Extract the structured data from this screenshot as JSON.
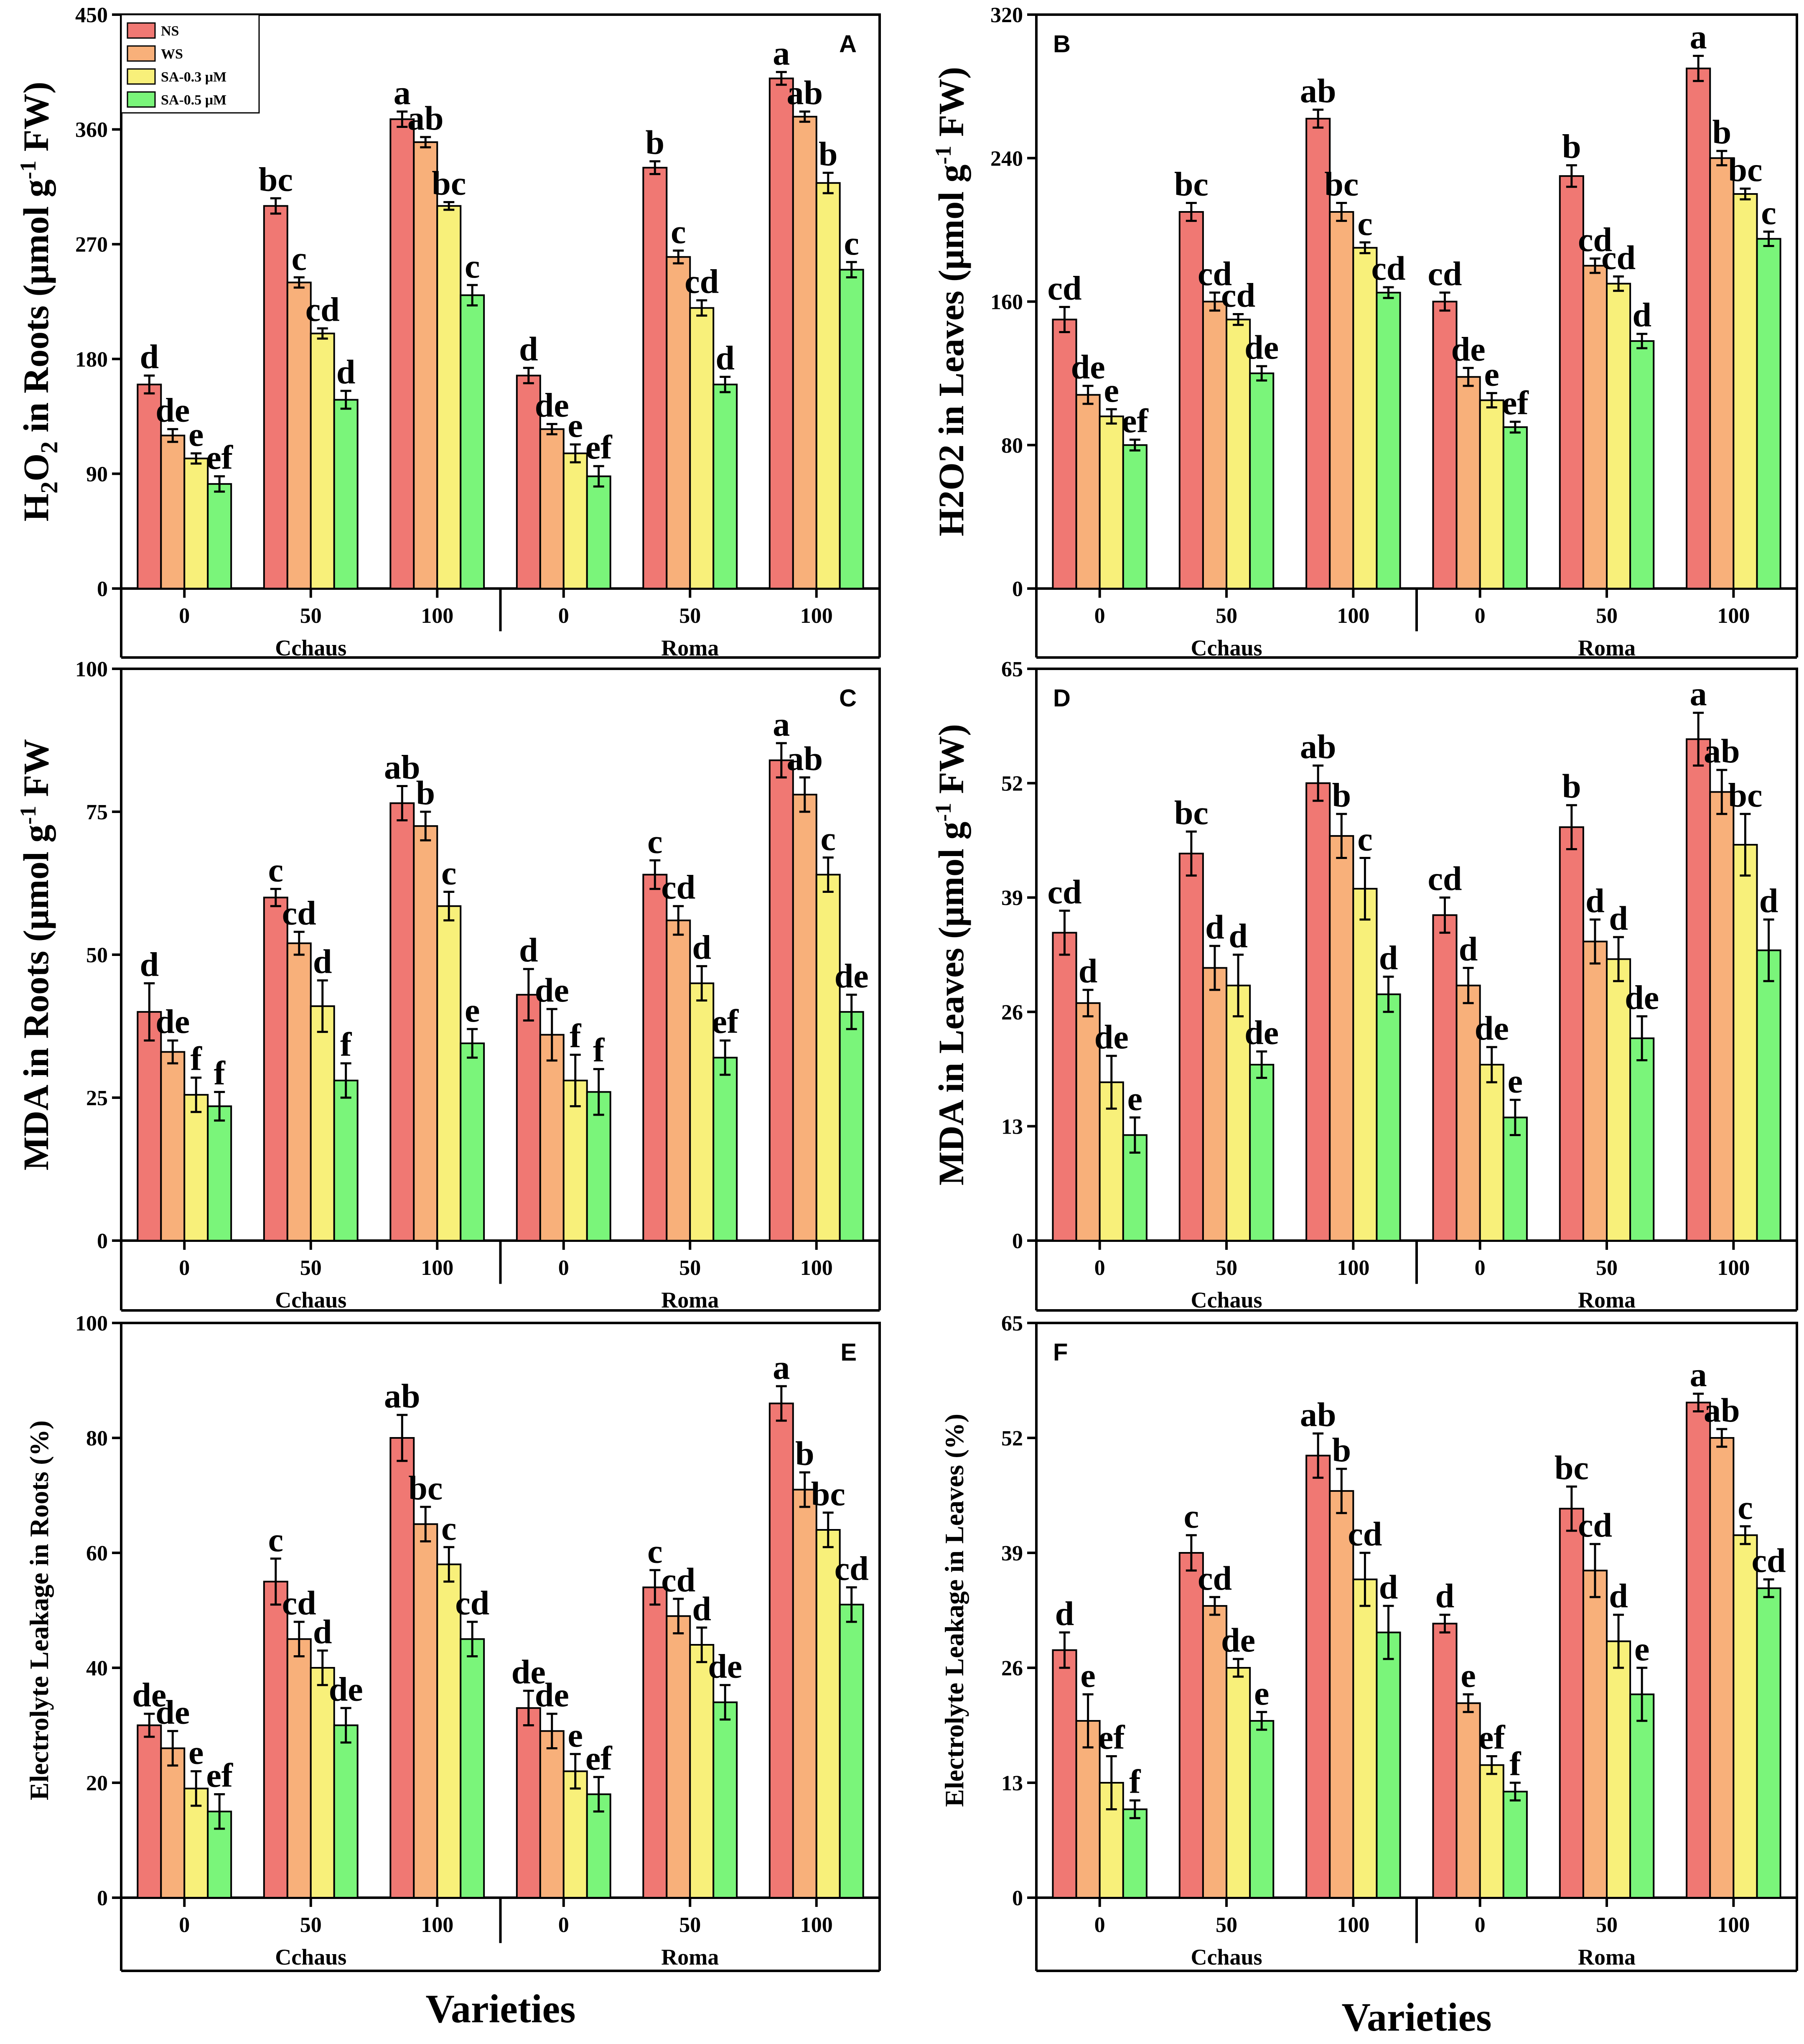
{
  "colors": {
    "NS": "#f07873",
    "WS": "#f8b07a",
    "SA-0.3 μM": "#f8f07a",
    "SA-0.5 μM": "#7af57a"
  },
  "legend": [
    "NS",
    "WS",
    "SA-0.3 μM",
    "SA-0.5 μM"
  ],
  "x_axis_title": "Varieties",
  "chart_data": [
    {
      "type": "bar",
      "panel": "A",
      "ylabel_parts": [
        "H",
        "2",
        "O",
        "2",
        " in Roots (μmol g",
        "-1",
        " FW)"
      ],
      "ylim": [
        0,
        450
      ],
      "yticks": [
        "0",
        "90",
        "180",
        "270",
        "360",
        "450"
      ],
      "categories": [
        "0",
        "50",
        "100",
        "0",
        "50",
        "100"
      ],
      "groups": [
        "Cchaus",
        "Roma"
      ],
      "series": [
        {
          "name": "NS",
          "values": [
            160,
            300,
            368,
            167,
            330,
            400
          ],
          "errors": [
            7,
            6,
            6,
            6,
            5,
            5
          ],
          "letters": [
            "d",
            "bc",
            "a",
            "d",
            "b",
            "a"
          ]
        },
        {
          "name": "WS",
          "values": [
            120,
            240,
            350,
            125,
            260,
            370
          ],
          "errors": [
            5,
            4,
            4,
            4,
            5,
            4
          ],
          "letters": [
            "de",
            "c",
            "ab",
            "de",
            "c",
            "ab"
          ]
        },
        {
          "name": "SA-0.3 μM",
          "values": [
            102,
            200,
            300,
            106,
            220,
            318
          ],
          "errors": [
            4,
            4,
            3,
            7,
            6,
            8
          ],
          "letters": [
            "e",
            "cd",
            "bc",
            "e",
            "cd",
            "b"
          ]
        },
        {
          "name": "SA-0.5 μM",
          "values": [
            82,
            148,
            230,
            88,
            160,
            250
          ],
          "errors": [
            6,
            7,
            8,
            8,
            6,
            6
          ],
          "letters": [
            "ef",
            "d",
            "c",
            "ef",
            "d",
            "c"
          ]
        }
      ]
    },
    {
      "type": "bar",
      "panel": "B",
      "ylabel_parts": [
        "H2O2 in Leaves (μmol g",
        "-1",
        " FW)"
      ],
      "ylim": [
        0,
        320
      ],
      "yticks": [
        "0",
        "80",
        "160",
        "240",
        "320"
      ],
      "categories": [
        "0",
        "50",
        "100",
        "0",
        "50",
        "100"
      ],
      "groups": [
        "Cchaus",
        "Roma"
      ],
      "series": [
        {
          "name": "NS",
          "values": [
            150,
            210,
            262,
            160,
            230,
            290
          ],
          "errors": [
            7,
            5,
            5,
            5,
            6,
            7
          ],
          "letters": [
            "cd",
            "bc",
            "ab",
            "cd",
            "b",
            "a"
          ]
        },
        {
          "name": "WS",
          "values": [
            108,
            160,
            210,
            118,
            180,
            240
          ],
          "errors": [
            5,
            5,
            5,
            5,
            4,
            4
          ],
          "letters": [
            "de",
            "cd",
            "bc",
            "de",
            "cd",
            "b"
          ]
        },
        {
          "name": "SA-0.3 μM",
          "values": [
            96,
            150,
            190,
            105,
            170,
            220
          ],
          "errors": [
            4,
            3,
            3,
            4,
            4,
            3
          ],
          "letters": [
            "e",
            "cd",
            "c",
            "e",
            "cd",
            "bc"
          ]
        },
        {
          "name": "SA-0.5 μM",
          "values": [
            80,
            120,
            165,
            90,
            138,
            195
          ],
          "errors": [
            3,
            4,
            3,
            3,
            4,
            4
          ],
          "letters": [
            "ef",
            "de",
            "cd",
            "ef",
            "d",
            "c"
          ]
        }
      ]
    },
    {
      "type": "bar",
      "panel": "C",
      "ylabel_parts": [
        "MDA in Roots (μmol g",
        "-1",
        " FW"
      ],
      "ylim": [
        0,
        100
      ],
      "yticks": [
        "0",
        "25",
        "50",
        "75",
        "100"
      ],
      "categories": [
        "0",
        "50",
        "100",
        "0",
        "50",
        "100"
      ],
      "groups": [
        "Cchaus",
        "Roma"
      ],
      "series": [
        {
          "name": "NS",
          "values": [
            40,
            60,
            76.5,
            43,
            64,
            84
          ],
          "errors": [
            5,
            1.5,
            3,
            4.5,
            2.5,
            3
          ],
          "letters": [
            "d",
            "c",
            "ab",
            "d",
            "c",
            "a"
          ]
        },
        {
          "name": "WS",
          "values": [
            33,
            52,
            72.5,
            36,
            56,
            78
          ],
          "errors": [
            2,
            2,
            2.5,
            4.5,
            2.5,
            3
          ],
          "letters": [
            "de",
            "cd",
            "b",
            "de",
            "cd",
            "ab"
          ]
        },
        {
          "name": "SA-0.3 μM",
          "values": [
            25.5,
            41,
            58.5,
            28,
            45,
            64
          ],
          "errors": [
            3,
            4.5,
            2.5,
            4.5,
            3,
            3
          ],
          "letters": [
            "f",
            "d",
            "c",
            "f",
            "d",
            "c"
          ]
        },
        {
          "name": "SA-0.5 μM",
          "values": [
            23.5,
            28,
            34.5,
            26,
            32,
            40
          ],
          "errors": [
            2.5,
            3,
            2.5,
            4,
            3,
            3
          ],
          "letters": [
            "f",
            "f",
            "e",
            "f",
            "ef",
            "de"
          ]
        }
      ]
    },
    {
      "type": "bar",
      "panel": "D",
      "ylabel_parts": [
        "MDA in Leaves (μmol g",
        "-1",
        " FW)"
      ],
      "ylim": [
        0,
        65
      ],
      "yticks": [
        "0",
        "13",
        "26",
        "39",
        "52",
        "65"
      ],
      "categories": [
        "0",
        "50",
        "100",
        "0",
        "50",
        "100"
      ],
      "groups": [
        "Cchaus",
        "Roma"
      ],
      "series": [
        {
          "name": "NS",
          "values": [
            35,
            44,
            52,
            37,
            47,
            57
          ],
          "errors": [
            2.5,
            2.5,
            2,
            2,
            2.5,
            3
          ],
          "letters": [
            "cd",
            "bc",
            "ab",
            "cd",
            "b",
            "a"
          ]
        },
        {
          "name": "WS",
          "values": [
            27,
            31,
            46,
            29,
            34,
            51
          ],
          "errors": [
            1.5,
            2.5,
            2.5,
            2,
            2.5,
            2.5
          ],
          "letters": [
            "d",
            "d",
            "b",
            "d",
            "d",
            "ab"
          ]
        },
        {
          "name": "SA-0.3 μM",
          "values": [
            18,
            29,
            40,
            20,
            32,
            45
          ],
          "errors": [
            3,
            3.5,
            3.5,
            2,
            2.5,
            3.5
          ],
          "letters": [
            "de",
            "d",
            "c",
            "de",
            "d",
            "bc"
          ]
        },
        {
          "name": "SA-0.5 μM",
          "values": [
            12,
            20,
            28,
            14,
            23,
            33
          ],
          "errors": [
            2,
            1.5,
            2,
            2,
            2.5,
            3.5
          ],
          "letters": [
            "e",
            "de",
            "d",
            "e",
            "de",
            "d"
          ]
        }
      ]
    },
    {
      "type": "bar",
      "panel": "E",
      "ylabel_parts": [
        "Electrolyte Leakage in Roots (%)"
      ],
      "ylim": [
        0,
        100
      ],
      "yticks": [
        "0",
        "20",
        "40",
        "60",
        "80",
        "100"
      ],
      "categories": [
        "0",
        "50",
        "100",
        "0",
        "50",
        "100"
      ],
      "groups": [
        "Cchaus",
        "Roma"
      ],
      "series": [
        {
          "name": "NS",
          "values": [
            30,
            55,
            80,
            33,
            54,
            86
          ],
          "errors": [
            2,
            4,
            4,
            3,
            3,
            3
          ],
          "letters": [
            "de",
            "c",
            "ab",
            "de",
            "c",
            "a"
          ]
        },
        {
          "name": "WS",
          "values": [
            26,
            45,
            65,
            29,
            49,
            71
          ],
          "errors": [
            3,
            3,
            3,
            3,
            3,
            3
          ],
          "letters": [
            "de",
            "cd",
            "bc",
            "de",
            "cd",
            "b"
          ]
        },
        {
          "name": "SA-0.3 μM",
          "values": [
            19,
            40,
            58,
            22,
            44,
            64
          ],
          "errors": [
            3,
            3,
            3,
            3,
            3,
            3
          ],
          "letters": [
            "e",
            "d",
            "c",
            "e",
            "d",
            "bc"
          ]
        },
        {
          "name": "SA-0.5 μM",
          "values": [
            15,
            30,
            45,
            18,
            34,
            51
          ],
          "errors": [
            3,
            3,
            3,
            3,
            3,
            3
          ],
          "letters": [
            "ef",
            "de",
            "cd",
            "ef",
            "de",
            "cd"
          ]
        }
      ]
    },
    {
      "type": "bar",
      "panel": "F",
      "ylabel_parts": [
        "Electrolyte Leakage in Leaves (%)"
      ],
      "ylim": [
        0,
        65
      ],
      "yticks": [
        "0",
        "13",
        "26",
        "39",
        "52",
        "65"
      ],
      "categories": [
        "0",
        "50",
        "100",
        "0",
        "50",
        "100"
      ],
      "groups": [
        "Cchaus",
        "Roma"
      ],
      "series": [
        {
          "name": "NS",
          "values": [
            28,
            39,
            50,
            31,
            44,
            56
          ],
          "errors": [
            2,
            2,
            2.5,
            1,
            2.5,
            1
          ],
          "letters": [
            "d",
            "c",
            "ab",
            "d",
            "bc",
            "a"
          ]
        },
        {
          "name": "WS",
          "values": [
            20,
            33,
            46,
            22,
            37,
            52
          ],
          "errors": [
            3,
            1,
            2.5,
            1,
            3,
            1
          ],
          "letters": [
            "e",
            "cd",
            "b",
            "e",
            "cd",
            "ab"
          ]
        },
        {
          "name": "SA-0.3 μM",
          "values": [
            13,
            26,
            36,
            15,
            29,
            41
          ],
          "errors": [
            3,
            1,
            3,
            1,
            3,
            1
          ],
          "letters": [
            "ef",
            "de",
            "cd",
            "ef",
            "d",
            "c"
          ]
        },
        {
          "name": "SA-0.5 μM",
          "values": [
            10,
            20,
            30,
            12,
            23,
            35
          ],
          "errors": [
            1,
            1,
            3,
            1,
            3,
            1
          ],
          "letters": [
            "f",
            "e",
            "d",
            "f",
            "e",
            "cd"
          ]
        }
      ]
    }
  ]
}
